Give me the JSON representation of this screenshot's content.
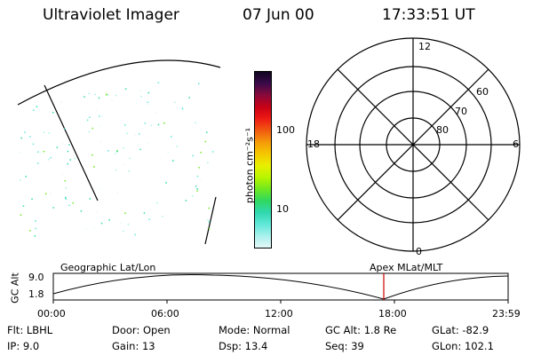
{
  "header": {
    "instrument": "Ultraviolet Imager",
    "date": "07 Jun 00",
    "time": "17:33:51 UT"
  },
  "colorbar": {
    "label": "photon cm⁻²s⁻¹",
    "tick_100": "100",
    "tick_10": "10",
    "colors": [
      "#10051f",
      "#3a0a4a",
      "#8a0a3a",
      "#c80016",
      "#ee1a14",
      "#f05a10",
      "#f59a0a",
      "#f5c800",
      "#e8f000",
      "#b8f500",
      "#70e820",
      "#30d860",
      "#30d8b0",
      "#60e8d8",
      "#a8f0ec",
      "#e4f8f8"
    ]
  },
  "polar": {
    "mlt_12": "12",
    "mlt_18": "18",
    "mlt_6": "6",
    "mlt_0": "0",
    "lat_60": "60",
    "lat_70": "70",
    "lat_80": "80"
  },
  "orbit_plot": {
    "ylabel": "GC Alt",
    "ytick_top": "9.0",
    "ytick_bottom": "1.8",
    "label_left": "Geographic Lat/Lon",
    "label_right": "Apex MLat/MLT",
    "xticks": [
      "00:00",
      "06:00",
      "12:00",
      "18:00",
      "23:59"
    ],
    "current_time_color": "#cc0000"
  },
  "footer": {
    "flt": "Flt: LBHL",
    "ip": "IP:  9.0",
    "door": "Door: Open",
    "gain": "Gain: 13",
    "mode": "Mode: Normal",
    "dsp": "Dsp:  13.4",
    "gc_alt": "GC Alt: 1.8 Re",
    "seq": "Seq: 39",
    "glat": "GLat: -82.9",
    "glon": "GLon: 102.1"
  }
}
